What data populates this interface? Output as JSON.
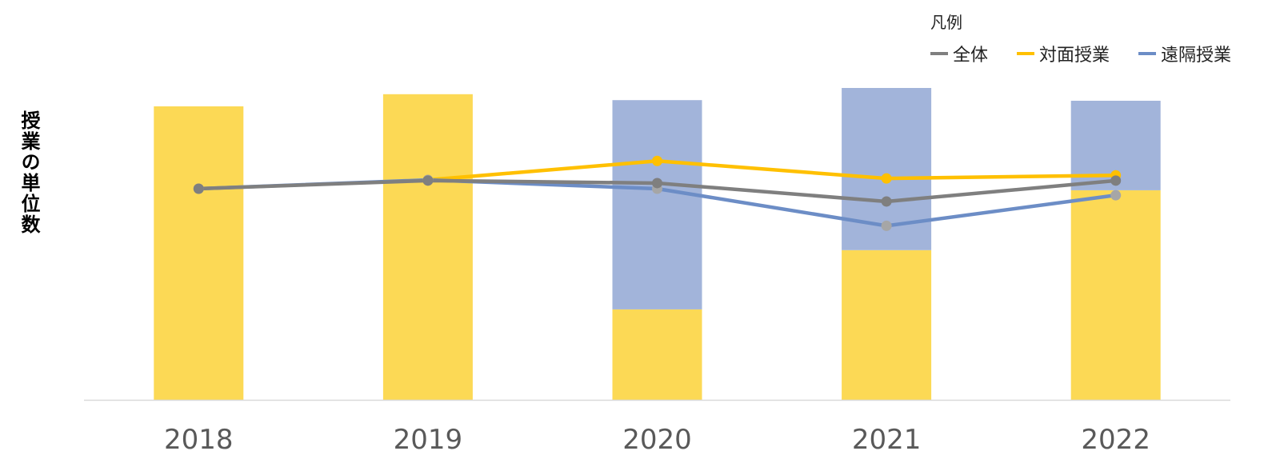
{
  "chart_data": {
    "type": "bar",
    "title": "",
    "xlabel": "",
    "ylabel": "授業の単位数",
    "ylim": [
      0,
      100
    ],
    "categories": [
      "2018",
      "2019",
      "2020",
      "2021",
      "2022"
    ],
    "bars": {
      "stacked": true,
      "series": [
        {
          "key": "face_to_face",
          "values": [
            94.1,
            98.0,
            29.0,
            48.0,
            67.2
          ],
          "color": "#FCD955"
        },
        {
          "key": "remote",
          "values": [
            0,
            0,
            67.1,
            52.0,
            28.7
          ],
          "color": "#A2B4DA"
        }
      ]
    },
    "lines": [
      {
        "name": "全体",
        "values": [
          67.7,
          70.3,
          69.5,
          63.6,
          70.3
        ],
        "color": "#7F7F7F",
        "marker_color": "#7F7F7F"
      },
      {
        "name": "対面授業",
        "values": [
          null,
          70.5,
          76.6,
          71.0,
          72.0
        ],
        "color": "#FFC000",
        "marker_color": "#FFC000"
      },
      {
        "name": "遠隔授業",
        "values": [
          67.7,
          70.5,
          67.7,
          55.8,
          65.6
        ],
        "color": "#6C8DC6",
        "marker_color": "#A6A6A6"
      }
    ],
    "legend": {
      "title": "凡例",
      "position": "top-right"
    },
    "grid": false
  }
}
